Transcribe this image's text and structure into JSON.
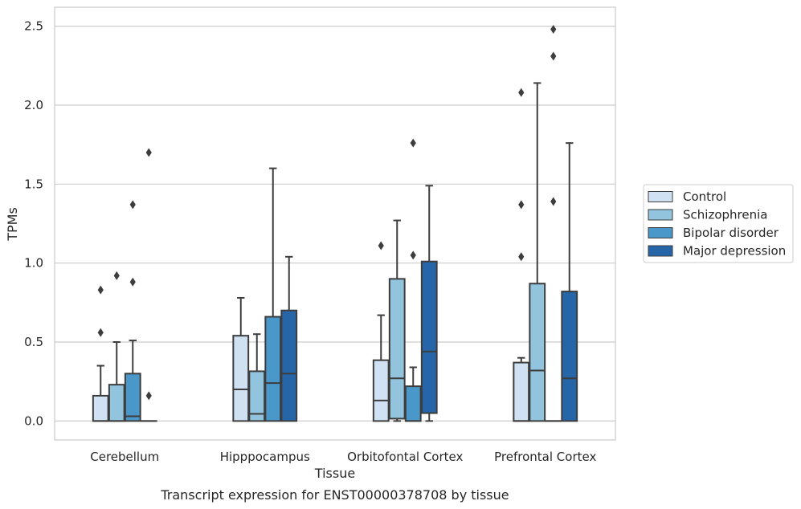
{
  "chart_data": {
    "type": "box",
    "caption": "Transcript expression for ENST00000378708 by tissue",
    "xlabel": "Tissue",
    "ylabel": "TPMs",
    "ylim": [
      -0.12,
      2.62
    ],
    "yticks": [
      "0.0",
      "0.5",
      "1.0",
      "1.5",
      "2.0",
      "2.5"
    ],
    "ytick_values": [
      0,
      0.5,
      1.0,
      1.5,
      2.0,
      2.5
    ],
    "grid": true,
    "legend_position": "right",
    "categories": [
      "Cerebellum",
      "Hipppocampus",
      "Orbitofontal Cortex",
      "Prefrontal Cortex"
    ],
    "series": [
      {
        "name": "Control",
        "color": "#cfe1f2",
        "boxes": [
          {
            "q1": 0,
            "median": 0,
            "q3": 0.16,
            "whisker_low": 0,
            "whisker_high": 0.35,
            "outliers": [
              0.56,
              0.83
            ]
          },
          {
            "q1": 0,
            "median": 0.2,
            "q3": 0.54,
            "whisker_low": 0,
            "whisker_high": 0.78,
            "outliers": []
          },
          {
            "q1": 0,
            "median": 0.13,
            "q3": 0.385,
            "whisker_low": 0,
            "whisker_high": 0.67,
            "outliers": [
              1.11
            ]
          },
          {
            "q1": 0,
            "median": 0,
            "q3": 0.37,
            "whisker_low": 0,
            "whisker_high": 0.4,
            "outliers": [
              1.04,
              1.37,
              2.08
            ]
          }
        ]
      },
      {
        "name": "Schizophrenia",
        "color": "#93c4de",
        "boxes": [
          {
            "q1": 0,
            "median": 0,
            "q3": 0.23,
            "whisker_low": 0,
            "whisker_high": 0.5,
            "outliers": [
              0.92
            ]
          },
          {
            "q1": 0,
            "median": 0.045,
            "q3": 0.315,
            "whisker_low": 0,
            "whisker_high": 0.55,
            "outliers": []
          },
          {
            "q1": 0.015,
            "median": 0.27,
            "q3": 0.9,
            "whisker_low": 0,
            "whisker_high": 1.27,
            "outliers": []
          },
          {
            "q1": 0,
            "median": 0.32,
            "q3": 0.87,
            "whisker_low": 0,
            "whisker_high": 2.14,
            "outliers": []
          }
        ]
      },
      {
        "name": "Bipolar disorder",
        "color": "#4a98c9",
        "boxes": [
          {
            "q1": 0,
            "median": 0.03,
            "q3": 0.3,
            "whisker_low": 0,
            "whisker_high": 0.51,
            "outliers": [
              0.88,
              1.37
            ]
          },
          {
            "q1": 0,
            "median": 0.24,
            "q3": 0.66,
            "whisker_low": 0,
            "whisker_high": 1.6,
            "outliers": []
          },
          {
            "q1": 0,
            "median": 0,
            "q3": 0.22,
            "whisker_low": 0,
            "whisker_high": 0.34,
            "outliers": [
              1.05,
              1.76
            ]
          },
          {
            "q1": 0,
            "median": 0,
            "q3": 0,
            "whisker_low": 0,
            "whisker_high": 0,
            "outliers": [
              1.39,
              2.31,
              2.48
            ]
          }
        ]
      },
      {
        "name": "Major depression",
        "color": "#2565a8",
        "boxes": [
          {
            "q1": 0,
            "median": 0,
            "q3": 0,
            "whisker_low": 0,
            "whisker_high": 0,
            "outliers": [
              0.16,
              1.7
            ]
          },
          {
            "q1": 0,
            "median": 0.3,
            "q3": 0.7,
            "whisker_low": 0,
            "whisker_high": 1.04,
            "outliers": []
          },
          {
            "q1": 0.05,
            "median": 0.44,
            "q3": 1.01,
            "whisker_low": 0,
            "whisker_high": 1.49,
            "outliers": []
          },
          {
            "q1": 0,
            "median": 0.27,
            "q3": 0.82,
            "whisker_low": 0,
            "whisker_high": 1.76,
            "outliers": []
          }
        ]
      }
    ]
  }
}
